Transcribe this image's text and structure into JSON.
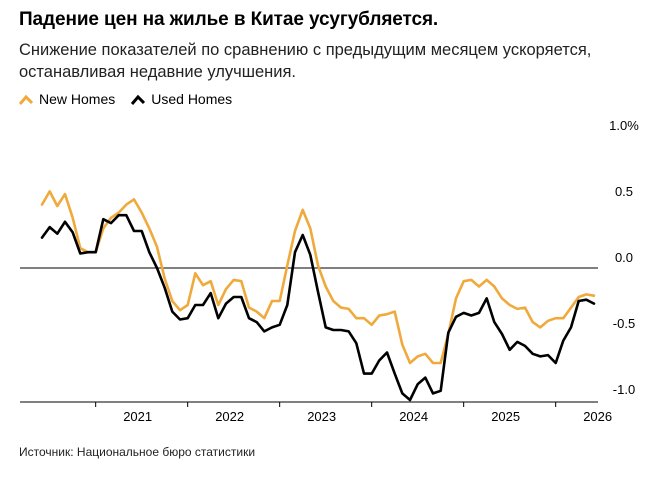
{
  "header": {
    "title": "Падение цен на жилье в Китае усугубляется.",
    "subtitle": "Снижение показателей по сравнению с предыдущим месяцем ускоряется, останавливая недавние улучшения."
  },
  "legend": [
    {
      "label": "New Homes",
      "color": "#f0a93b"
    },
    {
      "label": "Used Homes",
      "color": "#000000"
    }
  ],
  "source": "Источник: Национальное бюро статистики",
  "chart_data": {
    "type": "line",
    "xlabel": "",
    "ylabel": "",
    "ylim": [
      -1.0,
      1.0
    ],
    "xlim": [
      "2020-06",
      "2026-06"
    ],
    "y_ticks": [
      "1.0%",
      "0.5",
      "0.0",
      "-0.5",
      "-1.0"
    ],
    "x_ticks": [
      "2021",
      "2022",
      "2023",
      "2024",
      "2025",
      "2026"
    ],
    "legend_position": "top-left",
    "zero_line": true,
    "grid": false,
    "series": [
      {
        "name": "New Homes",
        "color": "#f0a93b",
        "values": [
          [
            "2020-06",
            0.48
          ],
          [
            "2020-07",
            0.58
          ],
          [
            "2020-08",
            0.47
          ],
          [
            "2020-09",
            0.56
          ],
          [
            "2020-10",
            0.38
          ],
          [
            "2020-11",
            0.15
          ],
          [
            "2020-12",
            0.12
          ],
          [
            "2021-01",
            0.12
          ],
          [
            "2021-02",
            0.3
          ],
          [
            "2021-03",
            0.38
          ],
          [
            "2021-04",
            0.42
          ],
          [
            "2021-05",
            0.48
          ],
          [
            "2021-06",
            0.52
          ],
          [
            "2021-07",
            0.42
          ],
          [
            "2021-08",
            0.3
          ],
          [
            "2021-09",
            0.16
          ],
          [
            "2021-10",
            -0.08
          ],
          [
            "2021-11",
            -0.25
          ],
          [
            "2021-12",
            -0.32
          ],
          [
            "2022-01",
            -0.28
          ],
          [
            "2022-02",
            -0.04
          ],
          [
            "2022-03",
            -0.13
          ],
          [
            "2022-04",
            -0.1
          ],
          [
            "2022-05",
            -0.28
          ],
          [
            "2022-06",
            -0.16
          ],
          [
            "2022-07",
            -0.09
          ],
          [
            "2022-08",
            -0.1
          ],
          [
            "2022-09",
            -0.3
          ],
          [
            "2022-10",
            -0.33
          ],
          [
            "2022-11",
            -0.38
          ],
          [
            "2022-12",
            -0.25
          ],
          [
            "2023-01",
            -0.25
          ],
          [
            "2023-02",
            0.02
          ],
          [
            "2023-03",
            0.28
          ],
          [
            "2023-04",
            0.44
          ],
          [
            "2023-05",
            0.3
          ],
          [
            "2023-06",
            0.02
          ],
          [
            "2023-07",
            -0.14
          ],
          [
            "2023-08",
            -0.25
          ],
          [
            "2023-09",
            -0.3
          ],
          [
            "2023-10",
            -0.31
          ],
          [
            "2023-11",
            -0.38
          ],
          [
            "2023-12",
            -0.38
          ],
          [
            "2024-01",
            -0.43
          ],
          [
            "2024-02",
            -0.36
          ],
          [
            "2024-03",
            -0.35
          ],
          [
            "2024-04",
            -0.33
          ],
          [
            "2024-05",
            -0.58
          ],
          [
            "2024-06",
            -0.72
          ],
          [
            "2024-07",
            -0.67
          ],
          [
            "2024-08",
            -0.65
          ],
          [
            "2024-09",
            -0.72
          ],
          [
            "2024-10",
            -0.72
          ],
          [
            "2024-11",
            -0.5
          ],
          [
            "2024-12",
            -0.23
          ],
          [
            "2025-01",
            -0.1
          ],
          [
            "2025-02",
            -0.09
          ],
          [
            "2025-03",
            -0.14
          ],
          [
            "2025-04",
            -0.09
          ],
          [
            "2025-05",
            -0.14
          ],
          [
            "2025-06",
            -0.23
          ],
          [
            "2025-07",
            -0.28
          ],
          [
            "2025-08",
            -0.31
          ],
          [
            "2025-09",
            -0.3
          ],
          [
            "2025-10",
            -0.41
          ],
          [
            "2025-11",
            -0.45
          ],
          [
            "2025-12",
            -0.4
          ],
          [
            "2026-01",
            -0.38
          ],
          [
            "2026-02",
            -0.38
          ],
          [
            "2026-03",
            -0.3
          ],
          [
            "2026-04",
            -0.22
          ],
          [
            "2026-05",
            -0.2
          ],
          [
            "2026-06",
            -0.21
          ]
        ]
      },
      {
        "name": "Used Homes",
        "color": "#000000",
        "values": [
          [
            "2020-06",
            0.23
          ],
          [
            "2020-07",
            0.31
          ],
          [
            "2020-08",
            0.26
          ],
          [
            "2020-09",
            0.35
          ],
          [
            "2020-10",
            0.27
          ],
          [
            "2020-11",
            0.11
          ],
          [
            "2020-12",
            0.12
          ],
          [
            "2021-01",
            0.12
          ],
          [
            "2021-02",
            0.37
          ],
          [
            "2021-03",
            0.34
          ],
          [
            "2021-04",
            0.4
          ],
          [
            "2021-05",
            0.4
          ],
          [
            "2021-06",
            0.28
          ],
          [
            "2021-07",
            0.28
          ],
          [
            "2021-08",
            0.12
          ],
          [
            "2021-09",
            0.0
          ],
          [
            "2021-10",
            -0.15
          ],
          [
            "2021-11",
            -0.33
          ],
          [
            "2021-12",
            -0.39
          ],
          [
            "2022-01",
            -0.38
          ],
          [
            "2022-02",
            -0.28
          ],
          [
            "2022-03",
            -0.28
          ],
          [
            "2022-04",
            -0.19
          ],
          [
            "2022-05",
            -0.38
          ],
          [
            "2022-06",
            -0.27
          ],
          [
            "2022-07",
            -0.22
          ],
          [
            "2022-08",
            -0.22
          ],
          [
            "2022-09",
            -0.38
          ],
          [
            "2022-10",
            -0.41
          ],
          [
            "2022-11",
            -0.48
          ],
          [
            "2022-12",
            -0.45
          ],
          [
            "2023-01",
            -0.43
          ],
          [
            "2023-02",
            -0.28
          ],
          [
            "2023-03",
            0.12
          ],
          [
            "2023-04",
            0.25
          ],
          [
            "2023-05",
            0.1
          ],
          [
            "2023-06",
            -0.18
          ],
          [
            "2023-07",
            -0.45
          ],
          [
            "2023-08",
            -0.47
          ],
          [
            "2023-09",
            -0.47
          ],
          [
            "2023-10",
            -0.48
          ],
          [
            "2023-11",
            -0.57
          ],
          [
            "2023-12",
            -0.8
          ],
          [
            "2024-01",
            -0.8
          ],
          [
            "2024-02",
            -0.7
          ],
          [
            "2024-03",
            -0.64
          ],
          [
            "2024-04",
            -0.8
          ],
          [
            "2024-05",
            -0.95
          ],
          [
            "2024-06",
            -1.0
          ],
          [
            "2024-07",
            -0.88
          ],
          [
            "2024-08",
            -0.83
          ],
          [
            "2024-09",
            -0.95
          ],
          [
            "2024-10",
            -0.93
          ],
          [
            "2024-11",
            -0.49
          ],
          [
            "2024-12",
            -0.37
          ],
          [
            "2025-01",
            -0.34
          ],
          [
            "2025-02",
            -0.36
          ],
          [
            "2025-03",
            -0.34
          ],
          [
            "2025-04",
            -0.23
          ],
          [
            "2025-05",
            -0.41
          ],
          [
            "2025-06",
            -0.5
          ],
          [
            "2025-07",
            -0.62
          ],
          [
            "2025-08",
            -0.56
          ],
          [
            "2025-09",
            -0.59
          ],
          [
            "2025-10",
            -0.65
          ],
          [
            "2025-11",
            -0.67
          ],
          [
            "2025-12",
            -0.66
          ],
          [
            "2026-01",
            -0.72
          ],
          [
            "2026-02",
            -0.55
          ],
          [
            "2026-03",
            -0.45
          ],
          [
            "2026-04",
            -0.25
          ],
          [
            "2026-05",
            -0.24
          ],
          [
            "2026-06",
            -0.27
          ]
        ]
      }
    ]
  }
}
